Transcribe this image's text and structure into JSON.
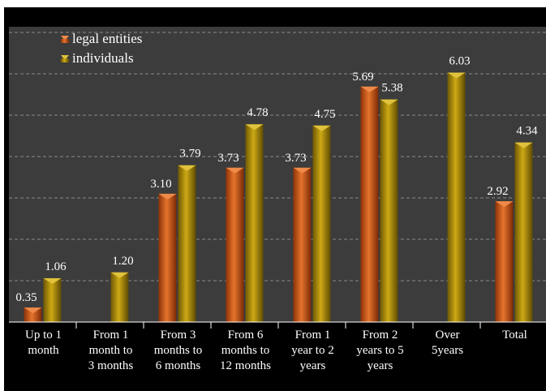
{
  "chart_data": {
    "type": "bar",
    "title": "",
    "xlabel": "",
    "ylabel": "",
    "categories": [
      [
        "Up to 1",
        "month"
      ],
      [
        "From 1",
        "month to",
        "3 months"
      ],
      [
        "From 3",
        "months to",
        "6 months"
      ],
      [
        "From 6",
        "months to",
        "12 months"
      ],
      [
        "From 1",
        "year to 2",
        "years"
      ],
      [
        "From 2",
        "years to 5",
        "years"
      ],
      [
        "Over",
        "5years"
      ],
      [
        "Total"
      ]
    ],
    "series": [
      {
        "name": "legal entities",
        "values": [
          0.35,
          null,
          3.1,
          3.73,
          3.73,
          5.69,
          null,
          2.92
        ],
        "labels": [
          "0.35",
          "",
          "3.10",
          "3.73",
          "3.73",
          "5.69",
          "",
          "2.92"
        ],
        "color": "#d05a1e"
      },
      {
        "name": "individuals",
        "values": [
          1.06,
          1.2,
          3.79,
          4.78,
          4.75,
          5.38,
          6.03,
          4.34
        ],
        "labels": [
          "1.06",
          "1.20",
          "3.79",
          "4.78",
          "4.75",
          "5.38",
          "6.03",
          "4.34"
        ],
        "color": "#b08c0c"
      }
    ],
    "ylim": [
      0,
      7
    ],
    "grid": true,
    "legend_position": "top-left",
    "colors": {
      "background": "#000000",
      "plot_area": "#3c3c3c",
      "gridline": "#8a8a8a",
      "text": "#ffffff"
    }
  }
}
